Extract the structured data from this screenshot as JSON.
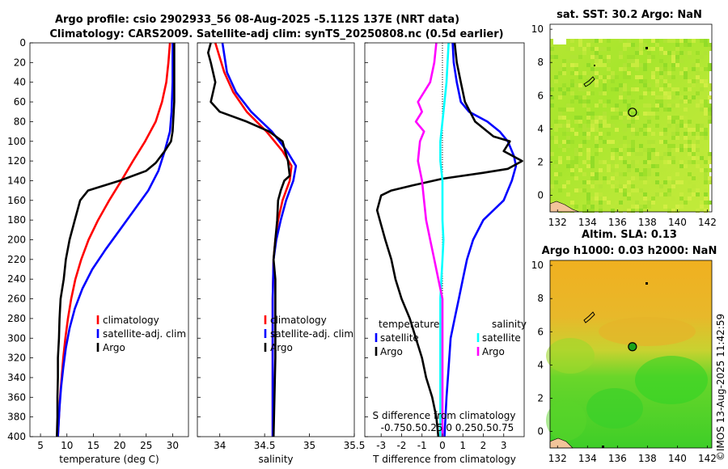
{
  "title_line1": "Argo profile: csio 2902933_56 08-Aug-2025 -5.112S 137E (NRT data)",
  "title_line2": "Climatology: CARS2009. Satellite-adj clim: synTS_20250808.nc (0.5d earlier)",
  "credit": "©IMOS 13-Aug-2025 11:42:59",
  "colors": {
    "red": "#ff0000",
    "blue": "#0000ff",
    "black": "#000000",
    "cyan": "#00ffff",
    "magenta": "#ff00ff"
  },
  "chart_data": [
    {
      "type": "line",
      "xlabel": "temperature (deg C)",
      "ylabel": "depth",
      "xlim": [
        3,
        33
      ],
      "ylim": [
        400,
        0
      ],
      "xticks": [
        "5",
        "10",
        "15",
        "20",
        "25",
        "30"
      ],
      "yticks": [
        "0",
        "20",
        "40",
        "60",
        "80",
        "100",
        "120",
        "140",
        "160",
        "180",
        "200",
        "220",
        "240",
        "260",
        "280",
        "300",
        "320",
        "340",
        "360",
        "380",
        "400"
      ],
      "legend": [
        "climatology",
        "satellite-adj. clim",
        "Argo"
      ],
      "series": [
        {
          "name": "climatology",
          "color": "#ff0000",
          "points": [
            [
              29.5,
              0
            ],
            [
              29.2,
              20
            ],
            [
              28.8,
              40
            ],
            [
              28.0,
              60
            ],
            [
              26.8,
              80
            ],
            [
              24.8,
              100
            ],
            [
              22.5,
              120
            ],
            [
              20.3,
              140
            ],
            [
              18.0,
              160
            ],
            [
              15.9,
              180
            ],
            [
              14.1,
              200
            ],
            [
              12.7,
              220
            ],
            [
              11.6,
              240
            ],
            [
              10.8,
              260
            ],
            [
              10.2,
              280
            ],
            [
              9.7,
              300
            ],
            [
              9.3,
              320
            ],
            [
              9.0,
              340
            ],
            [
              8.7,
              360
            ],
            [
              8.5,
              380
            ],
            [
              8.3,
              400
            ]
          ]
        },
        {
          "name": "satellite-adj. clim",
          "color": "#0000ff",
          "points": [
            [
              30.0,
              0
            ],
            [
              30.0,
              40
            ],
            [
              29.8,
              70
            ],
            [
              29.5,
              90
            ],
            [
              28.5,
              110
            ],
            [
              27.3,
              130
            ],
            [
              25.4,
              150
            ],
            [
              22.7,
              170
            ],
            [
              20.0,
              190
            ],
            [
              17.3,
              210
            ],
            [
              14.8,
              230
            ],
            [
              12.9,
              250
            ],
            [
              11.5,
              270
            ],
            [
              10.5,
              290
            ],
            [
              9.8,
              310
            ],
            [
              9.3,
              330
            ],
            [
              8.9,
              350
            ],
            [
              8.6,
              370
            ],
            [
              8.4,
              390
            ],
            [
              8.3,
              400
            ]
          ]
        },
        {
          "name": "Argo",
          "color": "#000000",
          "points": [
            [
              30.3,
              0
            ],
            [
              30.3,
              60
            ],
            [
              30.0,
              90
            ],
            [
              29.7,
              100
            ],
            [
              28.5,
              110
            ],
            [
              26.8,
              122
            ],
            [
              25.0,
              130
            ],
            [
              20.0,
              140
            ],
            [
              17.0,
              145
            ],
            [
              14.0,
              150
            ],
            [
              12.5,
              160
            ],
            [
              11.5,
              180
            ],
            [
              10.5,
              200
            ],
            [
              9.8,
              220
            ],
            [
              9.4,
              240
            ],
            [
              8.8,
              260
            ],
            [
              8.6,
              280
            ],
            [
              8.5,
              300
            ],
            [
              8.3,
              320
            ],
            [
              8.3,
              340
            ],
            [
              8.2,
              360
            ],
            [
              8.2,
              380
            ],
            [
              8.1,
              400
            ]
          ]
        }
      ]
    },
    {
      "type": "line",
      "xlabel": "salinity",
      "xlim": [
        33.75,
        35.5
      ],
      "ylim": [
        400,
        0
      ],
      "xticks": [
        "34",
        "34.5",
        "35",
        "35.5"
      ],
      "legend": [
        "climatology",
        "satellite-adj. clim",
        "Argo"
      ],
      "series": [
        {
          "name": "climatology",
          "color": "#ff0000",
          "points": [
            [
              33.95,
              0
            ],
            [
              34.05,
              30
            ],
            [
              34.15,
              50
            ],
            [
              34.3,
              70
            ],
            [
              34.52,
              90
            ],
            [
              34.7,
              110
            ],
            [
              34.8,
              125
            ],
            [
              34.78,
              140
            ],
            [
              34.7,
              160
            ],
            [
              34.65,
              180
            ],
            [
              34.62,
              200
            ],
            [
              34.6,
              220
            ],
            [
              34.59,
              260
            ],
            [
              34.59,
              300
            ],
            [
              34.59,
              400
            ]
          ]
        },
        {
          "name": "satellite-adj. clim",
          "color": "#0000ff",
          "points": [
            [
              34.03,
              0
            ],
            [
              34.08,
              30
            ],
            [
              34.18,
              50
            ],
            [
              34.35,
              70
            ],
            [
              34.58,
              90
            ],
            [
              34.75,
              110
            ],
            [
              34.85,
              125
            ],
            [
              34.82,
              140
            ],
            [
              34.74,
              160
            ],
            [
              34.68,
              180
            ],
            [
              34.63,
              200
            ],
            [
              34.6,
              220
            ],
            [
              34.59,
              260
            ],
            [
              34.59,
              300
            ],
            [
              34.59,
              400
            ]
          ]
        },
        {
          "name": "Argo",
          "color": "#000000",
          "points": [
            [
              33.9,
              0
            ],
            [
              33.87,
              10
            ],
            [
              33.9,
              20
            ],
            [
              33.95,
              40
            ],
            [
              33.9,
              60
            ],
            [
              34.0,
              70
            ],
            [
              34.3,
              80
            ],
            [
              34.55,
              90
            ],
            [
              34.7,
              100
            ],
            [
              34.76,
              120
            ],
            [
              34.78,
              135
            ],
            [
              34.72,
              140
            ],
            [
              34.68,
              150
            ],
            [
              34.65,
              160
            ],
            [
              34.64,
              180
            ],
            [
              34.62,
              200
            ],
            [
              34.6,
              220
            ],
            [
              34.62,
              240
            ],
            [
              34.62,
              280
            ],
            [
              34.62,
              320
            ],
            [
              34.61,
              360
            ],
            [
              34.6,
              400
            ]
          ]
        }
      ]
    },
    {
      "type": "line",
      "xlabel": "T difference from climatology",
      "x2label": "S difference from climatology",
      "x2ticks": "-0.75 -0.5 -0.25 0 0.25 0.5 0.75",
      "x2tick_label": "-0.750.50.25 0 0.250.50.75",
      "xlim": [
        -3.8,
        4.0
      ],
      "ylim": [
        400,
        0
      ],
      "xticks": [
        "-3",
        "-2",
        "-1",
        "0",
        "1",
        "2",
        "3"
      ],
      "legend_left_title": "temperature",
      "legend_right_title": "salinity",
      "legend_left": [
        "satellite",
        "Argo"
      ],
      "legend_right": [
        "satellite",
        "Argo"
      ],
      "series": [
        {
          "name": "T satellite",
          "color": "#0000ff",
          "points": [
            [
              0.5,
              0
            ],
            [
              0.55,
              20
            ],
            [
              0.7,
              40
            ],
            [
              0.9,
              60
            ],
            [
              1.3,
              70
            ],
            [
              2.2,
              80
            ],
            [
              2.8,
              90
            ],
            [
              3.2,
              100
            ],
            [
              3.5,
              115
            ],
            [
              3.6,
              125
            ],
            [
              3.4,
              140
            ],
            [
              3.0,
              160
            ],
            [
              2.0,
              180
            ],
            [
              1.5,
              200
            ],
            [
              1.2,
              220
            ],
            [
              1.0,
              240
            ],
            [
              0.8,
              260
            ],
            [
              0.6,
              280
            ],
            [
              0.4,
              300
            ],
            [
              0.3,
              330
            ],
            [
              0.2,
              360
            ],
            [
              0.1,
              400
            ]
          ]
        },
        {
          "name": "T Argo",
          "color": "#000000",
          "points": [
            [
              0.6,
              0
            ],
            [
              0.7,
              20
            ],
            [
              0.9,
              40
            ],
            [
              1.1,
              60
            ],
            [
              1.6,
              80
            ],
            [
              2.5,
              95
            ],
            [
              3.3,
              100
            ],
            [
              3.0,
              110
            ],
            [
              3.9,
              120
            ],
            [
              3.2,
              128
            ],
            [
              2.0,
              132
            ],
            [
              0.0,
              138
            ],
            [
              -1.5,
              145
            ],
            [
              -2.5,
              150
            ],
            [
              -3.0,
              155
            ],
            [
              -3.2,
              170
            ],
            [
              -3.0,
              185
            ],
            [
              -2.8,
              200
            ],
            [
              -2.5,
              220
            ],
            [
              -2.3,
              240
            ],
            [
              -2.0,
              260
            ],
            [
              -1.6,
              280
            ],
            [
              -1.3,
              300
            ],
            [
              -1.0,
              320
            ],
            [
              -0.8,
              340
            ],
            [
              -0.5,
              360
            ],
            [
              -0.3,
              380
            ],
            [
              -0.2,
              400
            ]
          ]
        },
        {
          "name": "S satellite",
          "color": "#00ffff",
          "points": [
            [
              0.3,
              0
            ],
            [
              0.25,
              20
            ],
            [
              0.2,
              40
            ],
            [
              0.1,
              60
            ],
            [
              0.0,
              80
            ],
            [
              -0.1,
              100
            ],
            [
              -0.1,
              120
            ],
            [
              0.0,
              140
            ],
            [
              0.0,
              160
            ],
            [
              0.0,
              180
            ],
            [
              0.05,
              200
            ],
            [
              0.0,
              220
            ],
            [
              -0.05,
              240
            ],
            [
              -0.1,
              260
            ],
            [
              -0.1,
              280
            ],
            [
              -0.1,
              300
            ],
            [
              -0.1,
              320
            ],
            [
              -0.1,
              340
            ],
            [
              -0.1,
              360
            ],
            [
              -0.1,
              380
            ],
            [
              -0.1,
              400
            ]
          ]
        },
        {
          "name": "S Argo",
          "color": "#ff00ff",
          "points": [
            [
              -0.3,
              0
            ],
            [
              -0.4,
              20
            ],
            [
              -0.6,
              40
            ],
            [
              -1.2,
              60
            ],
            [
              -1.0,
              70
            ],
            [
              -1.3,
              80
            ],
            [
              -0.9,
              90
            ],
            [
              -1.1,
              100
            ],
            [
              -1.2,
              120
            ],
            [
              -1.0,
              140
            ],
            [
              -0.9,
              160
            ],
            [
              -0.8,
              180
            ],
            [
              -0.6,
              200
            ],
            [
              -0.4,
              220
            ],
            [
              -0.2,
              240
            ],
            [
              0.0,
              260
            ],
            [
              0.0,
              300
            ],
            [
              0.0,
              340
            ],
            [
              0.0,
              400
            ]
          ]
        }
      ]
    },
    {
      "type": "heatmap",
      "title": "sat. SST: 30.2 Argo: NaN",
      "xlim": [
        131.5,
        142.3
      ],
      "ylim": [
        -1,
        10.3
      ],
      "xticks": [
        132,
        134,
        136,
        138,
        140,
        142
      ],
      "yticks": [
        0,
        2,
        4,
        6,
        8,
        10
      ],
      "marker": {
        "lon": 137.0,
        "lat": 5.0,
        "fill": "none"
      }
    },
    {
      "type": "heatmap",
      "title_line1": "Altim. SLA: 0.13",
      "title_line2": "Argo h1000: 0.03 h2000: NaN",
      "xlim": [
        131.5,
        142.3
      ],
      "ylim": [
        -1,
        10.3
      ],
      "xticks": [
        132,
        134,
        136,
        138,
        140,
        142
      ],
      "yticks": [
        0,
        2,
        4,
        6,
        8,
        10
      ],
      "marker": {
        "lon": 137.0,
        "lat": 5.1,
        "fill": "#1aa31a"
      }
    }
  ]
}
